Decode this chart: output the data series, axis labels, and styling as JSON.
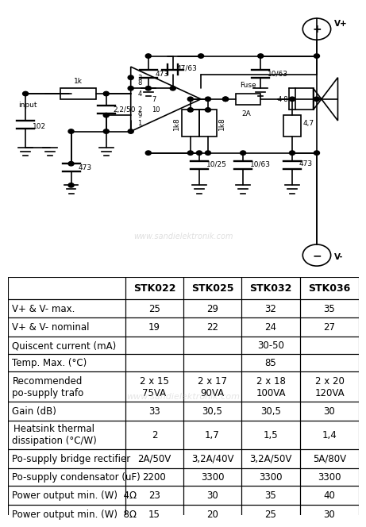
{
  "title": "stk022_stk025_stk032_stk036_schematic",
  "table_headers": [
    "",
    "STK022",
    "STK025",
    "STK032",
    "STK036"
  ],
  "table_rows": [
    [
      "V+ & V- max.",
      "25",
      "29",
      "32",
      "35"
    ],
    [
      "V+ & V- nominal",
      "19",
      "22",
      "24",
      "27"
    ],
    [
      "Quiscent current (mA)",
      "",
      "",
      "30-50",
      ""
    ],
    [
      "Temp. Max. (°C)",
      "",
      "",
      "85",
      ""
    ],
    [
      "Recommended\npo-supply trafo",
      "2 x 15\n75VA",
      "2 x 17\n90VA",
      "2 x 18\n100VA",
      "2 x 20\n120VA"
    ],
    [
      "Gain (dB)",
      "33",
      "30,5",
      "30,5",
      "30"
    ],
    [
      "Heatsink thermal\ndissipation (°C/W)",
      "2",
      "1,7",
      "1,5",
      "1,4"
    ],
    [
      "Po-supply bridge rectifier",
      "2A/50V",
      "3,2A/40V",
      "3,2A/50V",
      "5A/80V"
    ],
    [
      "Po-supply condensator (uF)",
      "2200",
      "3300",
      "3300",
      "3300"
    ],
    [
      "Power output min. (W)  4Ω",
      "23",
      "30",
      "35",
      "40"
    ],
    [
      "Power output min. (W)  8Ω",
      "15",
      "20",
      "25",
      "30"
    ]
  ],
  "watermark": "www.sandielektronik.com",
  "bg_color": "#ffffff",
  "line_color": "#000000",
  "schematic_ratio": 0.47
}
